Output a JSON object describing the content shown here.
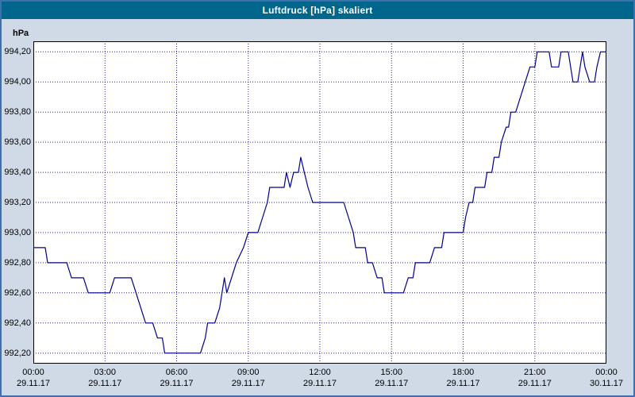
{
  "title": "Luftdruck [hPa] skaliert",
  "colors": {
    "titlebar": "#00668c",
    "window_background": "#cfdae6",
    "frame": "#3f6fad",
    "plot_background": "#ffffff",
    "line": "#00008b",
    "grid": "#00008b",
    "plot_border": "#000000"
  },
  "chart_data": {
    "type": "line",
    "title": "Luftdruck [hPa] skaliert",
    "ylabel": "hPa",
    "xlabel": "",
    "grid": "dotted",
    "legend": "none",
    "ylim": [
      992.13,
      994.27
    ],
    "xlim_hours": [
      0,
      24
    ],
    "yticks": [
      994.2,
      994.0,
      993.8,
      993.6,
      993.4,
      993.2,
      993.0,
      992.8,
      992.6,
      992.4,
      992.2
    ],
    "ytick_labels": [
      "994,20",
      "994,00",
      "993,80",
      "993,60",
      "993,40",
      "993,20",
      "993,00",
      "992,80",
      "992,60",
      "992,40",
      "992,20"
    ],
    "xticks": [
      {
        "hour": 0,
        "time": "00:00",
        "date": "29.11.17"
      },
      {
        "hour": 3,
        "time": "03:00",
        "date": "29.11.17"
      },
      {
        "hour": 6,
        "time": "06:00",
        "date": "29.11.17"
      },
      {
        "hour": 9,
        "time": "09:00",
        "date": "29.11.17"
      },
      {
        "hour": 12,
        "time": "12:00",
        "date": "29.11.17"
      },
      {
        "hour": 15,
        "time": "15:00",
        "date": "29.11.17"
      },
      {
        "hour": 18,
        "time": "18:00",
        "date": "29.11.17"
      },
      {
        "hour": 21,
        "time": "21:00",
        "date": "29.11.17"
      },
      {
        "hour": 24,
        "time": "00:00",
        "date": "30.11.17"
      }
    ],
    "series": [
      {
        "name": "Luftdruck",
        "unit": "hPa",
        "points": [
          [
            0.0,
            992.9
          ],
          [
            0.5,
            992.9
          ],
          [
            0.6,
            992.8
          ],
          [
            1.4,
            992.8
          ],
          [
            1.6,
            992.7
          ],
          [
            2.1,
            992.7
          ],
          [
            2.3,
            992.6
          ],
          [
            3.2,
            992.6
          ],
          [
            3.4,
            992.7
          ],
          [
            4.1,
            992.7
          ],
          [
            4.3,
            992.6
          ],
          [
            4.5,
            992.5
          ],
          [
            4.7,
            992.4
          ],
          [
            5.0,
            992.4
          ],
          [
            5.2,
            992.3
          ],
          [
            5.4,
            992.3
          ],
          [
            5.5,
            992.2
          ],
          [
            7.0,
            992.2
          ],
          [
            7.2,
            992.3
          ],
          [
            7.3,
            992.4
          ],
          [
            7.6,
            992.4
          ],
          [
            7.8,
            992.5
          ],
          [
            7.9,
            992.6
          ],
          [
            8.0,
            992.7
          ],
          [
            8.1,
            992.6
          ],
          [
            8.3,
            992.7
          ],
          [
            8.5,
            992.8
          ],
          [
            8.8,
            992.9
          ],
          [
            9.0,
            993.0
          ],
          [
            9.4,
            993.0
          ],
          [
            9.6,
            993.1
          ],
          [
            9.8,
            993.2
          ],
          [
            9.9,
            993.3
          ],
          [
            10.5,
            993.3
          ],
          [
            10.6,
            993.4
          ],
          [
            10.75,
            993.3
          ],
          [
            10.9,
            993.4
          ],
          [
            11.1,
            993.4
          ],
          [
            11.2,
            993.5
          ],
          [
            11.35,
            993.4
          ],
          [
            11.5,
            993.3
          ],
          [
            11.7,
            993.2
          ],
          [
            13.0,
            993.2
          ],
          [
            13.2,
            993.1
          ],
          [
            13.4,
            993.0
          ],
          [
            13.5,
            992.9
          ],
          [
            13.9,
            992.9
          ],
          [
            14.0,
            992.8
          ],
          [
            14.2,
            992.8
          ],
          [
            14.4,
            992.7
          ],
          [
            14.6,
            992.7
          ],
          [
            14.7,
            992.6
          ],
          [
            15.5,
            992.6
          ],
          [
            15.7,
            992.7
          ],
          [
            15.9,
            992.7
          ],
          [
            16.0,
            992.8
          ],
          [
            16.6,
            992.8
          ],
          [
            16.8,
            992.9
          ],
          [
            17.1,
            992.9
          ],
          [
            17.2,
            993.0
          ],
          [
            18.0,
            993.0
          ],
          [
            18.1,
            993.1
          ],
          [
            18.25,
            993.2
          ],
          [
            18.4,
            993.2
          ],
          [
            18.5,
            993.3
          ],
          [
            18.9,
            993.3
          ],
          [
            19.0,
            993.4
          ],
          [
            19.2,
            993.4
          ],
          [
            19.3,
            993.5
          ],
          [
            19.5,
            993.5
          ],
          [
            19.6,
            993.6
          ],
          [
            19.8,
            993.7
          ],
          [
            19.9,
            993.7
          ],
          [
            20.0,
            993.8
          ],
          [
            20.2,
            993.8
          ],
          [
            20.4,
            993.9
          ],
          [
            20.6,
            994.0
          ],
          [
            20.8,
            994.1
          ],
          [
            21.0,
            994.1
          ],
          [
            21.1,
            994.2
          ],
          [
            21.6,
            994.2
          ],
          [
            21.7,
            994.1
          ],
          [
            22.0,
            994.1
          ],
          [
            22.1,
            994.2
          ],
          [
            22.4,
            994.2
          ],
          [
            22.5,
            994.1
          ],
          [
            22.6,
            994.0
          ],
          [
            22.8,
            994.0
          ],
          [
            22.9,
            994.1
          ],
          [
            23.0,
            994.2
          ],
          [
            23.1,
            994.1
          ],
          [
            23.3,
            994.0
          ],
          [
            23.5,
            994.0
          ],
          [
            23.6,
            994.1
          ],
          [
            23.75,
            994.2
          ],
          [
            24.0,
            994.2
          ]
        ]
      }
    ]
  }
}
